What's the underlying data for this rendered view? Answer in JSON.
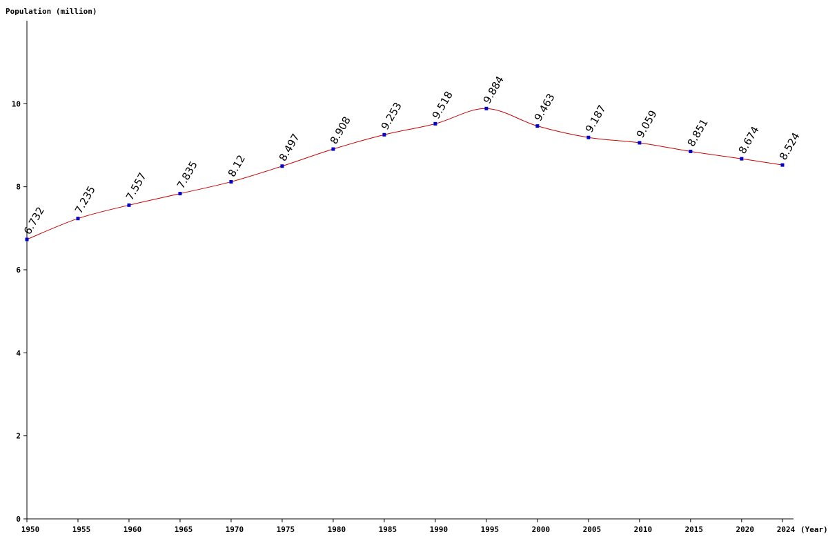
{
  "chart_data": {
    "type": "line",
    "ylabel": "Population (million)",
    "xlabel": "(Year)",
    "ylim": [
      0,
      12
    ],
    "yticks": [
      0,
      2,
      4,
      6,
      8,
      10
    ],
    "xlim": [
      1950,
      2024
    ],
    "xticks": [
      1950,
      1955,
      1960,
      1965,
      1970,
      1975,
      1980,
      1985,
      1990,
      1995,
      2000,
      2005,
      2010,
      2015,
      2020,
      2024
    ],
    "x": [
      1950,
      1955,
      1960,
      1965,
      1970,
      1975,
      1980,
      1985,
      1990,
      1995,
      2000,
      2005,
      2010,
      2015,
      2020,
      2024
    ],
    "values": [
      6.732,
      7.235,
      7.557,
      7.835,
      8.12,
      8.497,
      8.908,
      9.253,
      9.518,
      9.884,
      9.463,
      9.187,
      9.059,
      8.851,
      8.674,
      8.524
    ],
    "labels": [
      "6.732",
      "7.235",
      "7.557",
      "7.835",
      "8.12",
      "8.497",
      "8.908",
      "9.253",
      "9.518",
      "9.884",
      "9.463",
      "9.187",
      "9.059",
      "8.851",
      "8.674",
      "8.524"
    ],
    "line_color": "#cc0000",
    "marker_color": "#0000cc",
    "grid": false,
    "legend": "none"
  }
}
